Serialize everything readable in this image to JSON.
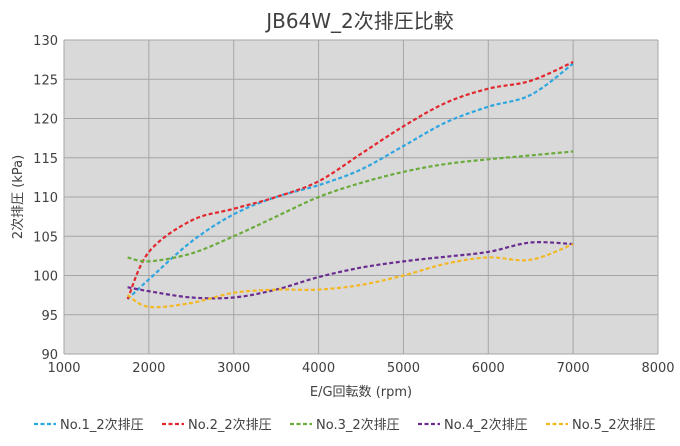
{
  "chart_data": {
    "type": "line",
    "title": "JB64W_2次排圧比較",
    "xlabel": "E/G回転数 (rpm)",
    "ylabel": "2次排圧 (kPa)",
    "xlim": [
      1000,
      8000
    ],
    "ylim": [
      90,
      130
    ],
    "x_ticks": [
      "1000",
      "2000",
      "3000",
      "4000",
      "5000",
      "6000",
      "7000",
      "8000"
    ],
    "y_ticks": [
      "90",
      "95",
      "100",
      "105",
      "110",
      "115",
      "120",
      "125",
      "130"
    ],
    "grid": true,
    "legend_position": "bottom",
    "plot_background": "#d9d9d9",
    "line_style": "dashed",
    "series": [
      {
        "name": "No.1_2次排圧",
        "color": "#2ea6e0",
        "x": [
          1750,
          2000,
          2500,
          3000,
          3500,
          4000,
          4500,
          5000,
          5500,
          6000,
          6500,
          7000
        ],
        "y": [
          97.0,
          99.5,
          104.3,
          107.8,
          110.0,
          111.5,
          113.5,
          116.5,
          119.5,
          121.5,
          123.0,
          127.0
        ]
      },
      {
        "name": "No.2_2次排圧",
        "color": "#e0282e",
        "x": [
          1750,
          2000,
          2500,
          3000,
          3500,
          4000,
          4500,
          5000,
          5500,
          6000,
          6500,
          7000
        ],
        "y": [
          97.0,
          103.0,
          107.0,
          108.5,
          110.0,
          112.0,
          115.5,
          119.0,
          122.0,
          123.8,
          124.8,
          127.2
        ]
      },
      {
        "name": "No.3_2次排圧",
        "color": "#6aab3b",
        "x": [
          1750,
          2000,
          2500,
          3000,
          3500,
          4000,
          4500,
          5000,
          5500,
          6000,
          6500,
          7000
        ],
        "y": [
          102.3,
          101.8,
          102.8,
          105.0,
          107.5,
          110.0,
          111.8,
          113.2,
          114.2,
          114.8,
          115.3,
          115.8
        ]
      },
      {
        "name": "No.4_2次排圧",
        "color": "#6a2d8f",
        "x": [
          1750,
          2000,
          2500,
          3000,
          3500,
          4000,
          4500,
          5000,
          5500,
          6000,
          6500,
          7000
        ],
        "y": [
          98.5,
          98.0,
          97.2,
          97.2,
          98.2,
          99.8,
          101.0,
          101.8,
          102.4,
          103.0,
          104.2,
          104.0
        ]
      },
      {
        "name": "No.5_2次排圧",
        "color": "#f4b824",
        "x": [
          1750,
          2000,
          2500,
          3000,
          3500,
          4000,
          4500,
          5000,
          5500,
          6000,
          6500,
          7000
        ],
        "y": [
          97.5,
          96.0,
          96.5,
          97.8,
          98.2,
          98.2,
          98.8,
          100.0,
          101.5,
          102.3,
          102.0,
          104.0
        ]
      }
    ]
  }
}
